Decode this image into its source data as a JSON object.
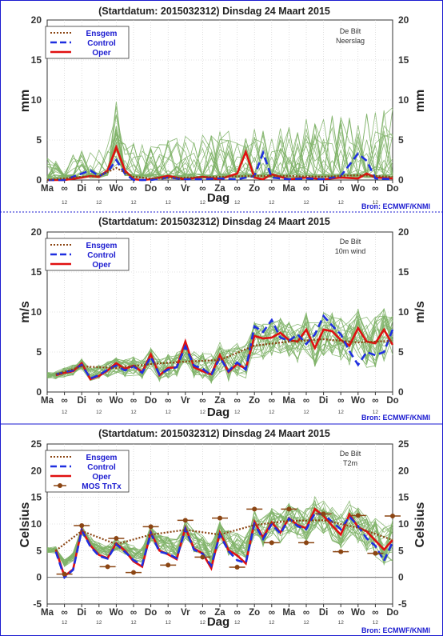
{
  "colors": {
    "ens": "#7fb368",
    "ensmean": "#8b4513",
    "control": "#1f2fe0",
    "oper": "#e01010",
    "mos": "#8b4513",
    "frame": "#1a1ad0",
    "grid": "#c8c8c8"
  },
  "panels": [
    {
      "title": "(Startdatum: 2015032312)   Dinsdag   24 Maart     2015",
      "ylabel": "mm",
      "yticks": [
        "0",
        "5",
        "10",
        "15",
        "20"
      ],
      "station": "De Bilt",
      "variable": "Neerslag",
      "xlabel": "Dag",
      "source": "Bron: ECMWF/KNMI",
      "days": [
        "Ma",
        "Di",
        "Wo",
        "Do",
        "Vr",
        "Za",
        "Zo",
        "Ma",
        "Di",
        "Wo",
        "Do"
      ],
      "marker": "∞",
      "hour": "12",
      "legend": [
        "Ensgem",
        "Control",
        "Oper"
      ]
    },
    {
      "title": "(Startdatum: 2015032312)   Dinsdag   24 Maart     2015",
      "ylabel": "m/s",
      "yticks": [
        "0",
        "5",
        "10",
        "15",
        "20"
      ],
      "station": "De Bilt",
      "variable": "10m wind",
      "xlabel": "Dag",
      "source": "Bron: ECMWF/KNMI",
      "days": [
        "Ma",
        "Di",
        "Wo",
        "Do",
        "Vr",
        "Za",
        "Zo",
        "Ma",
        "Di",
        "Wo",
        "Do"
      ],
      "marker": "∞",
      "hour": "12",
      "legend": [
        "Ensgem",
        "Control",
        "Oper"
      ]
    },
    {
      "title": "(Startdatum: 2015032312)   Dinsdag   24 Maart     2015",
      "ylabel": "Celsius",
      "yticks": [
        "-5",
        "0",
        "5",
        "10",
        "15",
        "20",
        "25"
      ],
      "station": "De Bilt",
      "variable": "T2m",
      "xlabel": "Dag",
      "source": "Bron: ECMWF/KNMI",
      "days": [
        "Ma",
        "Di",
        "Wo",
        "Do",
        "Vr",
        "Za",
        "Zo",
        "Ma",
        "Di",
        "Wo",
        "Do"
      ],
      "marker": "∞",
      "hour": "12",
      "legend": [
        "Ensgem",
        "Control",
        "Oper",
        "MOS TnTx"
      ]
    }
  ],
  "chart_data": [
    {
      "type": "line",
      "title": "(Startdatum: 2015032312)   Dinsdag   24 Maart     2015",
      "xlabel": "Dag",
      "ylabel": "mm",
      "ylim": [
        0,
        20
      ],
      "x_range_days": [
        0,
        10
      ],
      "grid": true,
      "legend_position": "top-left",
      "series": [
        {
          "name": "Oper",
          "x": [
            0,
            0.5,
            1,
            1.25,
            1.5,
            1.75,
            2,
            2.25,
            2.5,
            2.75,
            3,
            3.5,
            4,
            4.5,
            5,
            5.5,
            5.75,
            6,
            6.25,
            6.5,
            7,
            7.5,
            8,
            8.5,
            9,
            9.25,
            9.5,
            10
          ],
          "values": [
            0,
            0,
            0.3,
            0.5,
            0.4,
            1.2,
            4.1,
            1.2,
            0.1,
            0,
            0.1,
            0.5,
            0.1,
            0.4,
            0.1,
            0.8,
            3.5,
            0.3,
            0.1,
            0.7,
            0.1,
            0.3,
            0.1,
            0.3,
            0.2,
            0.8,
            0.3,
            0.2
          ]
        },
        {
          "name": "Control",
          "x": [
            0,
            0.5,
            1,
            1.25,
            1.5,
            1.75,
            2,
            2.25,
            2.5,
            3,
            3.5,
            4,
            4.5,
            5,
            5.5,
            6,
            6.25,
            6.5,
            7,
            7.5,
            8,
            8.5,
            9,
            9.25,
            9.5,
            10
          ],
          "values": [
            0,
            0,
            0.8,
            1.2,
            0.5,
            1.0,
            2.5,
            0.8,
            0,
            0,
            0.3,
            0.1,
            0.1,
            0.2,
            0.1,
            0.5,
            3.4,
            0.3,
            0.1,
            0.2,
            0.1,
            0.5,
            3.3,
            2.4,
            0.2,
            0.1
          ]
        },
        {
          "name": "Ensgem",
          "x": [
            0,
            1,
            1.5,
            2,
            2.5,
            3,
            4,
            5,
            6,
            7,
            8,
            9,
            10
          ],
          "values": [
            0,
            0.4,
            0.5,
            1.5,
            0.4,
            0.2,
            0.3,
            0.4,
            0.5,
            0.5,
            0.4,
            0.6,
            0.4
          ]
        }
      ]
    },
    {
      "type": "line",
      "title": "(Startdatum: 2015032312)   Dinsdag   24 Maart     2015",
      "xlabel": "Dag",
      "ylabel": "m/s",
      "ylim": [
        0,
        20
      ],
      "x_range_days": [
        0,
        10
      ],
      "grid": true,
      "legend_position": "top-left",
      "series": [
        {
          "name": "Oper",
          "x": [
            0.25,
            0.5,
            0.75,
            1,
            1.25,
            1.5,
            1.75,
            2,
            2.25,
            2.5,
            2.75,
            3,
            3.25,
            3.5,
            3.75,
            4,
            4.25,
            4.5,
            4.75,
            5,
            5.25,
            5.5,
            5.75,
            6,
            6.25,
            6.5,
            6.75,
            7,
            7.25,
            7.5,
            7.75,
            8,
            8.25,
            8.5,
            8.75,
            9,
            9.25,
            9.5,
            9.75,
            10
          ],
          "values": [
            2.1,
            2.4,
            2.6,
            3.6,
            1.6,
            2.0,
            2.7,
            3.6,
            2.9,
            3.3,
            2.5,
            4.7,
            2.1,
            3.0,
            3.1,
            6.3,
            3.1,
            2.6,
            2.2,
            4.6,
            2.5,
            3.5,
            2.9,
            7.0,
            6.7,
            6.8,
            7.4,
            6.5,
            6.3,
            7.8,
            5.5,
            7.8,
            7.6,
            6.5,
            5.8,
            8.0,
            6.3,
            6.1,
            7.8,
            5.9
          ]
        },
        {
          "name": "Control",
          "x": [
            0.25,
            0.5,
            0.75,
            1,
            1.25,
            1.5,
            1.75,
            2,
            2.25,
            2.5,
            2.75,
            3,
            3.25,
            3.5,
            3.75,
            4,
            4.25,
            4.5,
            4.75,
            5,
            5.25,
            5.5,
            5.75,
            6,
            6.25,
            6.5,
            6.75,
            7,
            7.25,
            7.5,
            7.75,
            8,
            8.25,
            8.5,
            8.75,
            9,
            9.25,
            9.5,
            9.75,
            10
          ],
          "values": [
            2.2,
            2.5,
            2.7,
            3.4,
            1.7,
            2.1,
            2.8,
            3.3,
            2.7,
            3.2,
            2.4,
            4.4,
            2.2,
            2.8,
            3.1,
            5.7,
            3.3,
            2.9,
            2.1,
            4.3,
            2.6,
            3.7,
            2.8,
            8.2,
            7.5,
            9.0,
            6.8,
            6.4,
            7.2,
            6.0,
            7.2,
            9.5,
            8.3,
            7.2,
            5.1,
            3.4,
            5.0,
            4.6,
            5.0,
            7.8
          ]
        },
        {
          "name": "Ensgem",
          "x": [
            0.25,
            1,
            2,
            3,
            4,
            5,
            6,
            7,
            8,
            9,
            10
          ],
          "values": [
            2.2,
            3.2,
            3.0,
            3.5,
            3.8,
            4.0,
            5.8,
            6.3,
            6.6,
            6.2,
            6.4
          ]
        }
      ]
    },
    {
      "type": "line",
      "title": "(Startdatum: 2015032312)   Dinsdag   24 Maart     2015",
      "xlabel": "Dag",
      "ylabel": "Celsius",
      "ylim": [
        -5,
        25
      ],
      "x_range_days": [
        0,
        10
      ],
      "grid": true,
      "legend_position": "top-left",
      "series": [
        {
          "name": "Oper",
          "x": [
            0.25,
            0.5,
            0.75,
            1,
            1.25,
            1.5,
            1.75,
            2,
            2.25,
            2.5,
            2.75,
            3,
            3.25,
            3.5,
            3.75,
            4,
            4.25,
            4.5,
            4.75,
            5,
            5.25,
            5.5,
            5.75,
            6,
            6.25,
            6.5,
            6.75,
            7,
            7.25,
            7.5,
            7.75,
            8,
            8.25,
            8.5,
            8.75,
            9,
            9.25,
            9.5,
            9.75,
            10
          ],
          "values": [
            5.2,
            0.2,
            1.5,
            9.0,
            6.0,
            4.2,
            3.6,
            6.4,
            5.0,
            3.0,
            2.0,
            8.5,
            5.0,
            4.3,
            3.4,
            9.3,
            5.4,
            4.5,
            1.7,
            8.4,
            5.1,
            4.1,
            2.6,
            10.4,
            7.5,
            10.3,
            8.4,
            11.1,
            9.8,
            9.2,
            12.8,
            11.5,
            9.7,
            8.0,
            11.8,
            9.4,
            8.6,
            6.9,
            5.2,
            7.0
          ]
        },
        {
          "name": "Control",
          "x": [
            0.25,
            0.5,
            0.75,
            1,
            1.25,
            1.5,
            1.75,
            2,
            2.25,
            2.5,
            2.75,
            3,
            3.25,
            3.5,
            3.75,
            4,
            4.25,
            4.5,
            4.75,
            5,
            5.25,
            5.5,
            5.75,
            6,
            6.25,
            6.5,
            6.75,
            7,
            7.25,
            7.5,
            7.75,
            8,
            8.25,
            8.5,
            8.75,
            9,
            9.25,
            9.5,
            9.75,
            10
          ],
          "values": [
            4.8,
            0.0,
            1.4,
            8.8,
            5.8,
            4.0,
            3.5,
            6.2,
            4.8,
            3.2,
            2.3,
            8.3,
            4.8,
            4.4,
            3.6,
            9.1,
            5.2,
            4.4,
            2.2,
            8.0,
            4.9,
            3.2,
            2.7,
            10.0,
            7.2,
            10.0,
            8.2,
            11.0,
            9.6,
            9.0,
            12.0,
            11.8,
            10.4,
            9.0,
            11.4,
            9.6,
            7.3,
            5.9,
            3.1,
            6.6
          ]
        },
        {
          "name": "Ensgem",
          "x": [
            0.25,
            1,
            2,
            3,
            4,
            5,
            6,
            7,
            8,
            9,
            10
          ],
          "values": [
            5.0,
            8.7,
            6.2,
            8.0,
            8.9,
            8.0,
            9.8,
            10.6,
            10.7,
            9.3,
            7.0
          ]
        },
        {
          "name": "MOS TnTx",
          "x": [
            0.5,
            1,
            1.75,
            2,
            2.5,
            3,
            3.5,
            4,
            4.5,
            5,
            5.5,
            6,
            6.5,
            7,
            7.5,
            8,
            8.5,
            9,
            9.5,
            10
          ],
          "values": [
            0.6,
            9.7,
            2.0,
            7.3,
            0.9,
            9.5,
            2.3,
            10.7,
            3.8,
            11.1,
            1.9,
            12.8,
            6.5,
            12.8,
            6.5,
            11.9,
            4.8,
            11.6,
            4.5,
            11.5
          ]
        }
      ]
    }
  ]
}
